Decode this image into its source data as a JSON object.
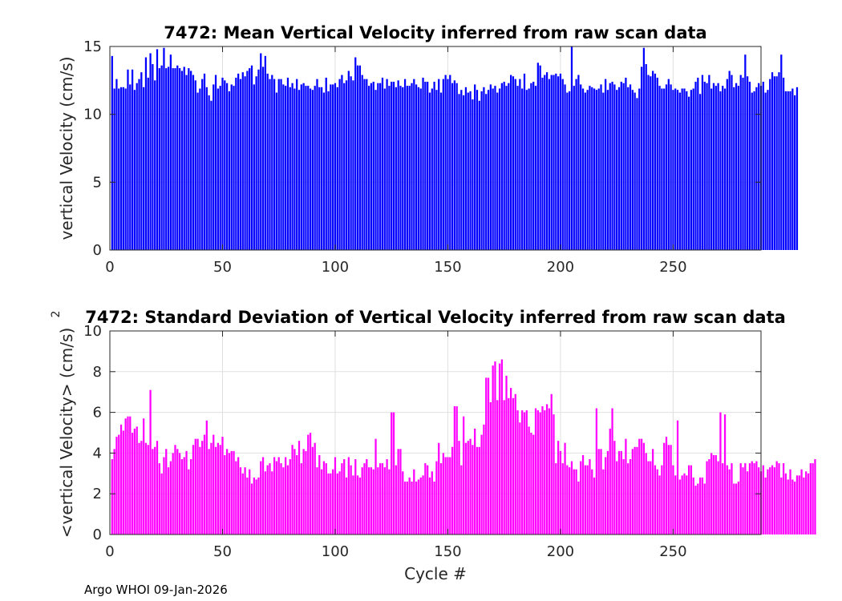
{
  "chart_data": [
    {
      "type": "bar",
      "title": "7472: Mean Vertical Velocity inferred from raw scan data",
      "xlabel": "",
      "ylabel": "vertical Velocity (cm/s)",
      "xlim": [
        0,
        289
      ],
      "ylim": [
        0,
        15
      ],
      "xticks": [
        0,
        50,
        100,
        150,
        200,
        250
      ],
      "yticks": [
        0,
        5,
        10,
        15
      ],
      "grid": true,
      "color": "#0000ff",
      "x_start": 1,
      "values": [
        14.3,
        11.9,
        12.6,
        11.9,
        12.0,
        12.0,
        11.9,
        13.3,
        12.2,
        13.3,
        11.8,
        12.3,
        12.6,
        13.1,
        12.0,
        14.2,
        12.7,
        14.5,
        13.7,
        12.5,
        14.8,
        13.4,
        13.6,
        14.9,
        13.4,
        13.5,
        14.4,
        13.4,
        13.4,
        13.6,
        13.4,
        13.2,
        13.5,
        12.9,
        13.4,
        13.2,
        12.9,
        12.5,
        11.6,
        11.9,
        12.6,
        13.0,
        12.0,
        11.4,
        11.0,
        12.2,
        12.9,
        11.9,
        12.1,
        12.7,
        12.5,
        12.3,
        11.7,
        12.2,
        12.1,
        12.7,
        13.0,
        12.6,
        13.1,
        12.8,
        13.2,
        13.4,
        13.6,
        12.2,
        12.8,
        13.3,
        14.5,
        13.5,
        14.3,
        13.0,
        12.6,
        12.9,
        12.6,
        11.6,
        12.6,
        12.6,
        12.2,
        12.1,
        12.7,
        12.0,
        12.3,
        11.9,
        12.6,
        11.8,
        12.2,
        12.3,
        12.1,
        12.1,
        11.9,
        11.8,
        12.1,
        12.6,
        12.0,
        12.0,
        11.6,
        12.7,
        11.7,
        12.2,
        12.2,
        12.3,
        12.0,
        12.6,
        12.9,
        12.3,
        12.5,
        13.2,
        12.8,
        12.5,
        14.2,
        13.6,
        13.6,
        12.9,
        12.6,
        12.6,
        12.1,
        12.3,
        12.4,
        11.8,
        12.3,
        12.3,
        12.7,
        11.9,
        12.6,
        12.1,
        12.4,
        12.4,
        12.0,
        12.5,
        12.1,
        12.0,
        12.6,
        12.1,
        12.1,
        12.3,
        12.6,
        12.2,
        12.0,
        11.9,
        12.7,
        12.4,
        12.4,
        11.6,
        11.9,
        12.4,
        11.8,
        12.6,
        11.6,
        12.6,
        12.9,
        12.6,
        12.9,
        12.3,
        12.5,
        12.3,
        11.5,
        11.8,
        11.4,
        12.0,
        11.6,
        11.7,
        11.1,
        12.2,
        11.8,
        11.0,
        11.7,
        12.0,
        11.5,
        11.8,
        12.2,
        11.9,
        12.1,
        11.6,
        11.9,
        12.3,
        12.4,
        12.1,
        12.3,
        12.9,
        12.8,
        12.6,
        12.1,
        12.6,
        11.9,
        13.0,
        11.8,
        11.9,
        12.3,
        12.4,
        12.1,
        13.8,
        13.6,
        12.7,
        12.9,
        13.1,
        12.6,
        12.9,
        12.9,
        13.0,
        12.8,
        13.0,
        12.6,
        12.2,
        11.6,
        11.7,
        12.3,
        12.1,
        12.6,
        12.9,
        12.2,
        11.9,
        11.6,
        11.8,
        12.1,
        12.0,
        11.9,
        11.8,
        11.9,
        12.2,
        11.6,
        12.6,
        11.8,
        12.3,
        12.4,
        12.2,
        11.8,
        12.0,
        12.4,
        12.3,
        12.7,
        12.0,
        12.2,
        11.8,
        11.6,
        11.2,
        11.9,
        13.5,
        14.9,
        13.7,
        12.9,
        12.8,
        13.2,
        13.0,
        12.7,
        12.1,
        11.9,
        11.9,
        12.2,
        12.6,
        12.2,
        11.8,
        11.9,
        11.8,
        11.6,
        11.9,
        11.9,
        11.7,
        11.3,
        11.8,
        11.9,
        12.4,
        12.7,
        11.5,
        12.9,
        12.4,
        12.3,
        12.9,
        11.9,
        12.3,
        12.1,
        12.3,
        11.7,
        12.1,
        11.9,
        12.6,
        13.2,
        12.9,
        12.0,
        12.3,
        12.1,
        12.9,
        12.7,
        12.1,
        12.8,
        12.4,
        11.6,
        11.7,
        12.0,
        12.3,
        12.1,
        12.4,
        11.6,
        11.8,
        12.6,
        13.1,
        12.8,
        12.8,
        13.1,
        14.4,
        12.7,
        11.7,
        11.7,
        11.7,
        11.9,
        11.4,
        12.0
      ],
      "overrides": [
        [
          205,
          15.2
        ],
        [
          282,
          14.4
        ]
      ]
    },
    {
      "type": "bar",
      "title": "7472: Standard Deviation of Vertical Velocity inferred from raw scan data",
      "xlabel": "Cycle #",
      "ylabel": "<vertical Velocity> (cm/s)",
      "ylabel_superscript": "2",
      "xlim": [
        0,
        289
      ],
      "ylim": [
        0,
        10
      ],
      "xticks": [
        0,
        50,
        100,
        150,
        200,
        250
      ],
      "yticks": [
        0,
        2,
        4,
        6,
        8,
        10
      ],
      "grid": true,
      "color": "#ff00ff",
      "x_start": 1,
      "values": [
        3.7,
        4.2,
        4.8,
        4.9,
        5.4,
        5.1,
        5.7,
        5.8,
        5.8,
        5.0,
        5.2,
        5.3,
        4.5,
        4.6,
        5.7,
        4.5,
        4.4,
        7.1,
        4.2,
        4.3,
        4.6,
        3.5,
        3.0,
        3.8,
        4.2,
        4.3,
        3.6,
        4.0,
        4.4,
        4.2,
        4.0,
        3.7,
        3.8,
        4.1,
        3.2,
        3.7,
        4.4,
        4.7,
        4.7,
        4.3,
        4.6,
        4.9,
        5.6,
        4.2,
        4.5,
        4.9,
        4.3,
        4.5,
        4.4,
        4.8,
        3.9,
        4.2,
        4.0,
        4.1,
        4.1,
        3.6,
        3.8,
        3.3,
        3.0,
        3.3,
        2.8,
        3.2,
        2.5,
        2.8,
        2.7,
        2.8,
        3.6,
        3.8,
        3.1,
        3.4,
        3.5,
        3.1,
        3.8,
        3.6,
        3.8,
        3.5,
        3.3,
        3.8,
        3.4,
        3.7,
        4.4,
        4.2,
        3.9,
        4.6,
        3.5,
        4.2,
        4.1,
        4.9,
        5.1,
        4.3,
        4.5,
        3.3,
        3.9,
        3.2,
        3.6,
        3.5,
        3.0,
        3.0,
        3.2,
        3.8,
        3.0,
        3.1,
        3.5,
        3.7,
        2.8,
        3.8,
        3.4,
        2.9,
        3.7,
        2.9,
        2.8,
        3.3,
        3.5,
        3.7,
        3.3,
        3.3,
        3.2,
        4.7,
        3.3,
        3.5,
        3.5,
        3.3,
        3.7,
        3.2,
        3.7,
        6.0,
        3.4,
        4.2,
        4.2,
        3.1,
        2.6,
        2.6,
        2.8,
        2.6,
        3.2,
        2.6,
        2.7,
        2.8,
        2.9,
        3.5,
        3.4,
        2.8,
        3.1,
        2.6,
        3.6,
        4.5,
        3.5,
        4.0,
        3.8,
        3.8,
        3.8,
        4.3,
        3.7,
        6.3,
        4.6,
        3.4,
        5.8,
        4.5,
        4.6,
        4.7,
        4.4,
        5.2,
        4.3,
        4.3,
        4.9,
        5.4,
        6.5,
        7.7,
        6.5,
        7.5,
        7.4,
        8.3,
        8.4,
        8.6,
        6.6,
        7.8,
        6.7,
        7.2,
        6.7,
        6.9,
        6.1,
        5.5,
        6.1,
        6.0,
        6.1,
        5.3,
        5.0,
        4.9,
        6.2,
        6.1,
        6.0,
        6.3,
        6.1,
        6.4,
        6.2,
        6.9,
        5.9,
        3.5,
        4.6,
        4.1,
        3.5,
        4.5,
        3.4,
        3.3,
        3.6,
        3.2,
        3.2,
        2.6,
        3.6,
        3.9,
        3.4,
        3.4,
        3.7,
        3.2,
        2.8,
        3.1,
        4.2,
        4.2,
        3.2,
        3.8,
        4.1,
        5.2,
        6.2,
        4.6,
        3.6,
        4.1,
        4.1,
        3.7,
        4.7,
        3.5,
        3.7,
        4.2,
        4.3,
        4.3,
        4.7,
        4.7,
        4.5,
        4.0,
        3.6,
        3.6,
        4.2,
        3.4,
        3.2,
        2.9,
        3.4,
        4.5,
        4.8,
        4.4,
        4.4,
        3.4,
        2.9,
        3.3,
        2.7,
        2.9,
        3.0,
        2.9,
        3.4,
        3.4,
        2.8,
        2.4,
        2.5,
        2.8,
        2.8,
        2.5,
        3.6,
        3.7,
        4.0,
        3.9,
        3.9,
        3.6,
        3.7,
        3.5,
        3.6,
        3.4,
        3.2,
        3.5,
        2.5,
        2.5,
        2.6,
        3.5,
        3.3,
        3.5,
        3.1,
        3.5,
        3.6,
        3.5,
        3.6,
        3.3,
        3.1,
        3.4,
        2.8,
        3.2,
        3.3,
        3.4,
        3.3,
        3.6,
        3.5,
        2.8,
        3.5,
        3.0,
        2.7,
        3.2,
        2.7,
        2.6,
        2.9,
        2.9,
        3.2,
        2.8,
        3.1,
        3.0,
        3.5,
        3.5,
        3.7
      ],
      "overrides": [
        [
          26,
          3.3
        ],
        [
          89,
          5.0
        ],
        [
          125,
          6.0
        ],
        [
          153,
          6.3
        ],
        [
          167,
          7.7
        ],
        [
          170,
          8.3
        ],
        [
          171,
          8.5
        ],
        [
          172,
          6.6
        ],
        [
          216,
          6.2
        ],
        [
          252,
          5.6
        ],
        [
          271,
          6.0
        ],
        [
          273,
          5.9
        ]
      ]
    }
  ],
  "footer": "Argo WHOI 09-Jan-2026"
}
